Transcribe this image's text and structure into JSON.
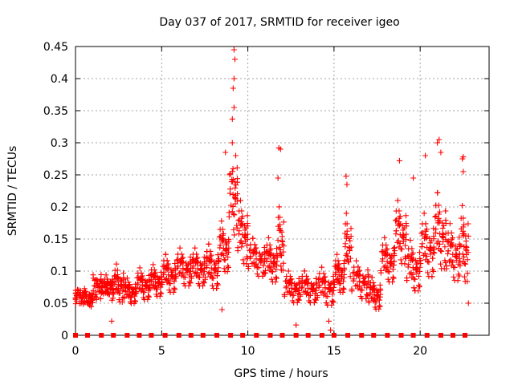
{
  "chart_data": {
    "type": "scatter",
    "title": "Day 037 of 2017, SRMTID for receiver igeo",
    "xlabel": "GPS time / hours",
    "ylabel": "SRMTID / TECUs",
    "xlim": [
      0,
      24
    ],
    "ylim": [
      0,
      0.45
    ],
    "xticks": [
      0,
      5,
      10,
      15,
      20
    ],
    "yticks": [
      0,
      0.05,
      0.1,
      0.15,
      0.2,
      0.25,
      0.3,
      0.35,
      0.4,
      0.45
    ],
    "ytick_labels": [
      "0",
      "0.05",
      "0.1",
      "0.15",
      "0.2",
      "0.25",
      "0.3",
      "0.35",
      "0.4",
      "0.45"
    ],
    "grid": true,
    "marker": "+",
    "series_color": "#ff0000",
    "series": [
      {
        "name": "SRMTID",
        "segments": [
          {
            "t": [
              0.0,
              0.5
            ],
            "base": 0.06,
            "amp": 0.015
          },
          {
            "t": [
              0.5,
              1.0
            ],
            "base": 0.055,
            "amp": 0.015
          },
          {
            "t": [
              1.0,
              1.6
            ],
            "base": 0.075,
            "amp": 0.025
          },
          {
            "t": [
              1.6,
              2.2
            ],
            "base": 0.07,
            "amp": 0.02
          },
          {
            "t": [
              2.2,
              2.8
            ],
            "base": 0.075,
            "amp": 0.03
          },
          {
            "t": [
              2.8,
              3.5
            ],
            "base": 0.065,
            "amp": 0.02
          },
          {
            "t": [
              3.5,
              4.3
            ],
            "base": 0.075,
            "amp": 0.025
          },
          {
            "t": [
              4.3,
              5.0
            ],
            "base": 0.08,
            "amp": 0.025
          },
          {
            "t": [
              5.0,
              5.8
            ],
            "base": 0.09,
            "amp": 0.03
          },
          {
            "t": [
              5.8,
              6.7
            ],
            "base": 0.1,
            "amp": 0.03
          },
          {
            "t": [
              6.7,
              7.5
            ],
            "base": 0.1,
            "amp": 0.03
          },
          {
            "t": [
              7.5,
              8.3
            ],
            "base": 0.1,
            "amp": 0.035
          },
          {
            "t": [
              8.3,
              8.9
            ],
            "base": 0.13,
            "amp": 0.04
          },
          {
            "t": [
              8.9,
              9.4
            ],
            "base": 0.21,
            "amp": 0.07
          },
          {
            "t": [
              9.4,
              10.0
            ],
            "base": 0.15,
            "amp": 0.05
          },
          {
            "t": [
              10.0,
              11.0
            ],
            "base": 0.115,
            "amp": 0.03
          },
          {
            "t": [
              11.0,
              11.7
            ],
            "base": 0.11,
            "amp": 0.035
          },
          {
            "t": [
              11.7,
              12.1
            ],
            "base": 0.14,
            "amp": 0.05
          },
          {
            "t": [
              12.1,
              13.0
            ],
            "base": 0.07,
            "amp": 0.025
          },
          {
            "t": [
              13.0,
              14.0
            ],
            "base": 0.07,
            "amp": 0.025
          },
          {
            "t": [
              14.0,
              15.0
            ],
            "base": 0.07,
            "amp": 0.03
          },
          {
            "t": [
              15.0,
              15.6
            ],
            "base": 0.09,
            "amp": 0.03
          },
          {
            "t": [
              15.6,
              16.0
            ],
            "base": 0.13,
            "amp": 0.05
          },
          {
            "t": [
              16.0,
              17.0
            ],
            "base": 0.08,
            "amp": 0.03
          },
          {
            "t": [
              17.0,
              17.7
            ],
            "base": 0.06,
            "amp": 0.025
          },
          {
            "t": [
              17.7,
              18.5
            ],
            "base": 0.11,
            "amp": 0.035
          },
          {
            "t": [
              18.5,
              19.2
            ],
            "base": 0.15,
            "amp": 0.05
          },
          {
            "t": [
              19.2,
              20.0
            ],
            "base": 0.1,
            "amp": 0.04
          },
          {
            "t": [
              20.0,
              20.8
            ],
            "base": 0.13,
            "amp": 0.05
          },
          {
            "t": [
              20.8,
              21.5
            ],
            "base": 0.15,
            "amp": 0.06
          },
          {
            "t": [
              21.5,
              22.3
            ],
            "base": 0.12,
            "amp": 0.045
          },
          {
            "t": [
              22.3,
              22.8
            ],
            "base": 0.13,
            "amp": 0.06
          }
        ],
        "notable_points": [
          {
            "x": 9.2,
            "y": 0.445
          },
          {
            "x": 9.25,
            "y": 0.43
          },
          {
            "x": 9.2,
            "y": 0.4
          },
          {
            "x": 9.15,
            "y": 0.385
          },
          {
            "x": 9.2,
            "y": 0.355
          },
          {
            "x": 9.1,
            "y": 0.337
          },
          {
            "x": 9.1,
            "y": 0.3
          },
          {
            "x": 9.3,
            "y": 0.28
          },
          {
            "x": 8.7,
            "y": 0.285
          },
          {
            "x": 11.8,
            "y": 0.292
          },
          {
            "x": 11.9,
            "y": 0.29
          },
          {
            "x": 11.75,
            "y": 0.245
          },
          {
            "x": 15.7,
            "y": 0.248
          },
          {
            "x": 15.75,
            "y": 0.235
          },
          {
            "x": 18.8,
            "y": 0.272
          },
          {
            "x": 19.6,
            "y": 0.245
          },
          {
            "x": 20.3,
            "y": 0.28
          },
          {
            "x": 21.0,
            "y": 0.3
          },
          {
            "x": 21.1,
            "y": 0.305
          },
          {
            "x": 21.2,
            "y": 0.285
          },
          {
            "x": 22.5,
            "y": 0.278
          },
          {
            "x": 22.45,
            "y": 0.275
          },
          {
            "x": 22.5,
            "y": 0.255
          },
          {
            "x": 12.8,
            "y": 0.016
          },
          {
            "x": 14.8,
            "y": 0.008
          },
          {
            "x": 14.7,
            "y": 0.022
          },
          {
            "x": 2.1,
            "y": 0.022
          },
          {
            "x": 8.5,
            "y": 0.04
          },
          {
            "x": 22.8,
            "y": 0.05
          }
        ]
      }
    ],
    "baseline_markers": {
      "y": 0,
      "x": [
        0.7,
        1.5,
        2.2,
        3.0,
        3.7,
        4.4,
        5.2,
        6.0,
        6.7,
        7.4,
        8.2,
        9.0,
        9.7,
        10.5,
        11.3,
        12.0,
        12.8,
        13.5,
        14.3,
        15.0,
        15.8,
        16.6,
        17.3,
        18.1,
        18.9,
        19.6,
        20.4,
        21.2,
        21.9,
        22.6,
        0.0
      ]
    }
  }
}
